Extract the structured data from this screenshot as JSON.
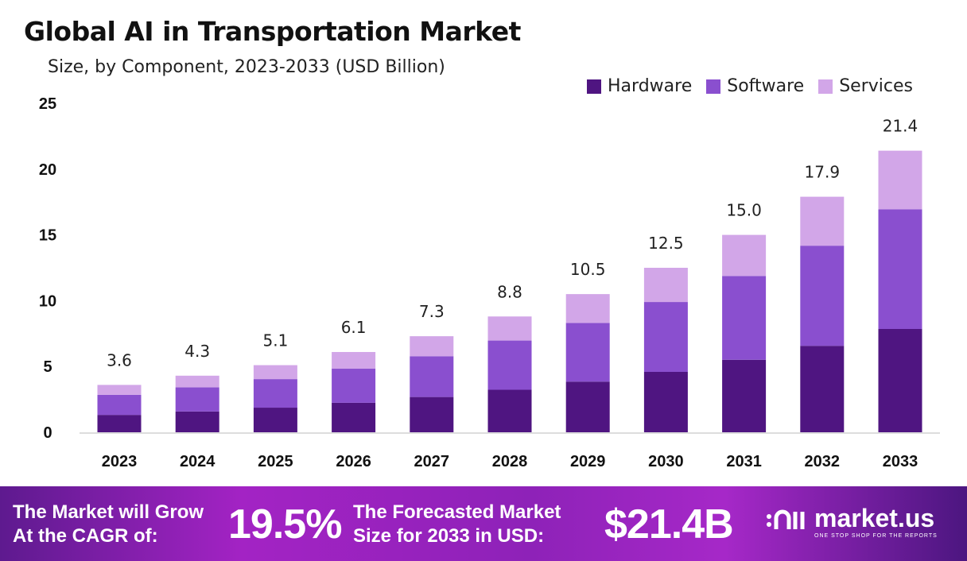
{
  "chart_data": {
    "type": "bar",
    "stacked": true,
    "title": "Global AI in Transportation Market",
    "subtitle": "Size, by Component, 2023-2033 (USD Billion)",
    "categories": [
      "2023",
      "2024",
      "2025",
      "2026",
      "2027",
      "2028",
      "2029",
      "2030",
      "2031",
      "2032",
      "2033"
    ],
    "series": [
      {
        "name": "Hardware",
        "color": "#4f1581",
        "values": [
          1.32,
          1.58,
          1.87,
          2.24,
          2.68,
          3.23,
          3.85,
          4.59,
          5.51,
          6.57,
          7.85
        ]
      },
      {
        "name": "Software",
        "color": "#8a4fcf",
        "values": [
          1.53,
          1.83,
          2.17,
          2.59,
          3.1,
          3.74,
          4.46,
          5.31,
          6.37,
          7.61,
          9.1
        ]
      },
      {
        "name": "Services",
        "color": "#d2a6e8",
        "values": [
          0.75,
          0.89,
          1.06,
          1.27,
          1.52,
          1.83,
          2.19,
          2.6,
          3.12,
          3.72,
          4.45
        ]
      }
    ],
    "totals": [
      "3.6",
      "4.3",
      "5.1",
      "6.1",
      "7.3",
      "8.8",
      "10.5",
      "12.5",
      "15.0",
      "17.9",
      "21.4"
    ],
    "yticks": [
      "0",
      "5",
      "10",
      "15",
      "20",
      "25"
    ],
    "ylim": [
      0,
      25
    ],
    "grid": false,
    "legend": "top-right"
  },
  "footer": {
    "cagr_text_1": "The Market will Grow",
    "cagr_text_2": "At the CAGR of:",
    "cagr_value": "19.5%",
    "forecast_text_1": "The Forecasted Market",
    "forecast_text_2": "Size for 2033 in USD:",
    "forecast_value": "$21.4B",
    "logo_name": "market.us",
    "logo_tagline": "ONE STOP SHOP FOR THE REPORTS"
  }
}
